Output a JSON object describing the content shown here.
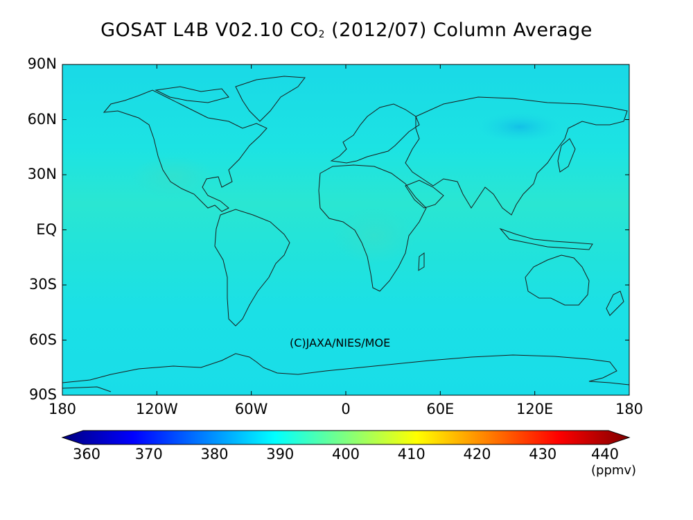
{
  "title": {
    "prefix": "GOSAT L4B V02.10 CO",
    "sub": "2",
    "suffix": " (2012/07) Column Average"
  },
  "copyright": "(C)JAXA/NIES/MOE",
  "lat_labels": [
    "90N",
    "60N",
    "30N",
    "EQ",
    "30S",
    "60S",
    "90S"
  ],
  "lon_labels": [
    "180",
    "120W",
    "60W",
    "0",
    "60E",
    "120E",
    "180"
  ],
  "colorbar": {
    "ticks": [
      "360",
      "370",
      "380",
      "390",
      "400",
      "410",
      "420",
      "430",
      "440"
    ],
    "min": 360,
    "max": 440,
    "units": "(ppmv)",
    "colors": [
      "#00007f",
      "#0000ff",
      "#0080ff",
      "#00ffff",
      "#7fff7f",
      "#ffff00",
      "#ff8000",
      "#ff0000",
      "#7f0000"
    ]
  },
  "field": {
    "background_color": "#1ae6e6",
    "typical_value": 393
  }
}
